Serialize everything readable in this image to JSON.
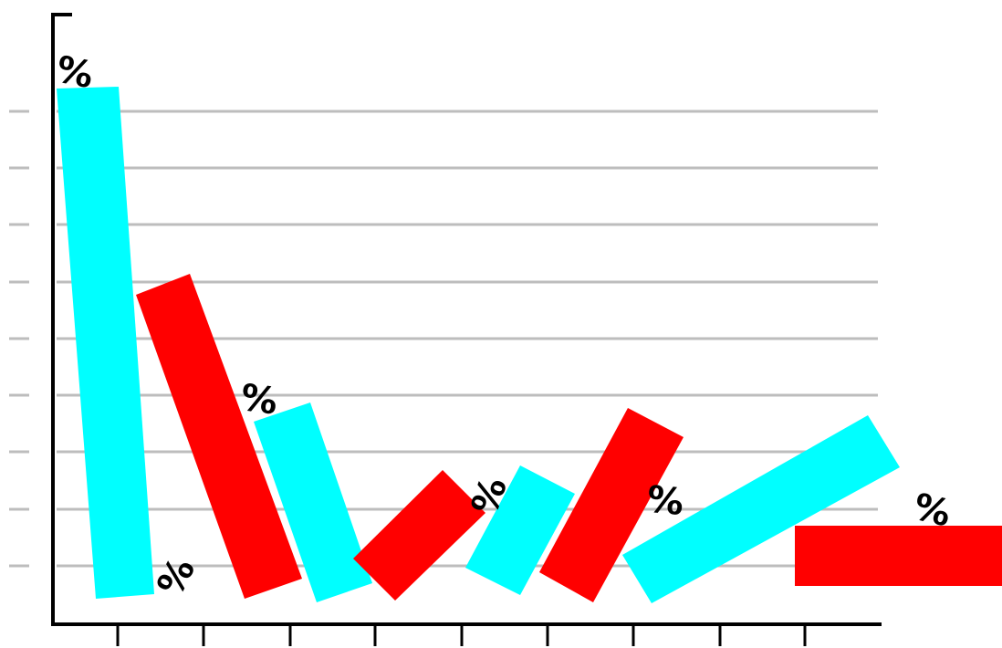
{
  "colors": {
    "background": "#ffffff",
    "axis": "#000000",
    "gridline": "#bdbdbd",
    "cyan_bar": "#00ffff",
    "red_bar": "#ff0000",
    "label": "#000000"
  },
  "grid": true,
  "bars": [
    {
      "color": "cyan"
    },
    {
      "color": "red"
    },
    {
      "color": "cyan"
    },
    {
      "color": "red"
    },
    {
      "color": "cyan"
    },
    {
      "color": "red"
    },
    {
      "color": "cyan"
    },
    {
      "color": "red"
    }
  ],
  "labels": [
    {
      "text": "%"
    },
    {
      "text": "%"
    },
    {
      "text": "%"
    },
    {
      "text": "%"
    },
    {
      "text": "%"
    },
    {
      "text": "%"
    }
  ]
}
